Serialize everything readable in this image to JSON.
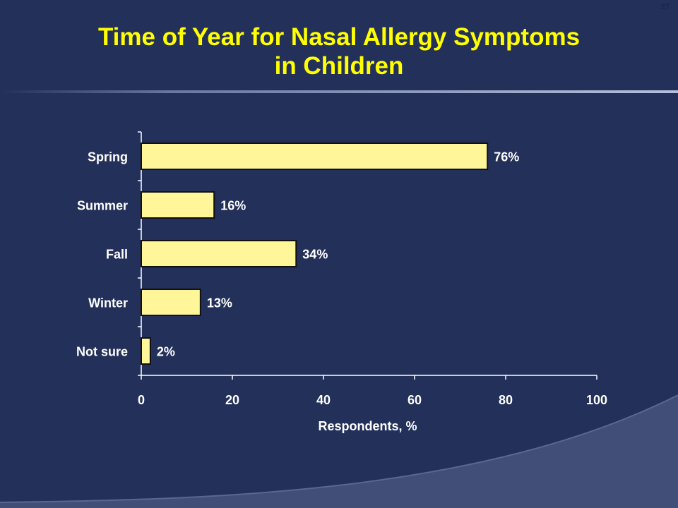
{
  "slide": {
    "page_number": "27",
    "title_line1": "Time of Year for Nasal Allergy Symptoms",
    "title_line2": "in Children"
  },
  "colors": {
    "background": "#23305a",
    "title": "#ffff00",
    "bar_fill": "#fff69a",
    "text": "#ffffff",
    "rule": "#8a96c0"
  },
  "chart_data": {
    "type": "bar",
    "orientation": "horizontal",
    "title": "Time of Year for Nasal Allergy Symptoms in Children",
    "categories": [
      "Spring",
      "Summer",
      "Fall",
      "Winter",
      "Not sure"
    ],
    "values": [
      76,
      16,
      34,
      13,
      2
    ],
    "data_labels": [
      "76%",
      "16%",
      "34%",
      "13%",
      "2%"
    ],
    "xlabel": "Respondents, %",
    "ylabel": "",
    "xlim": [
      0,
      100
    ],
    "xticks": [
      0,
      20,
      40,
      60,
      80,
      100
    ],
    "xtick_labels": [
      "0",
      "20",
      "40",
      "60",
      "80",
      "100"
    ],
    "grid": false,
    "legend": "none"
  }
}
